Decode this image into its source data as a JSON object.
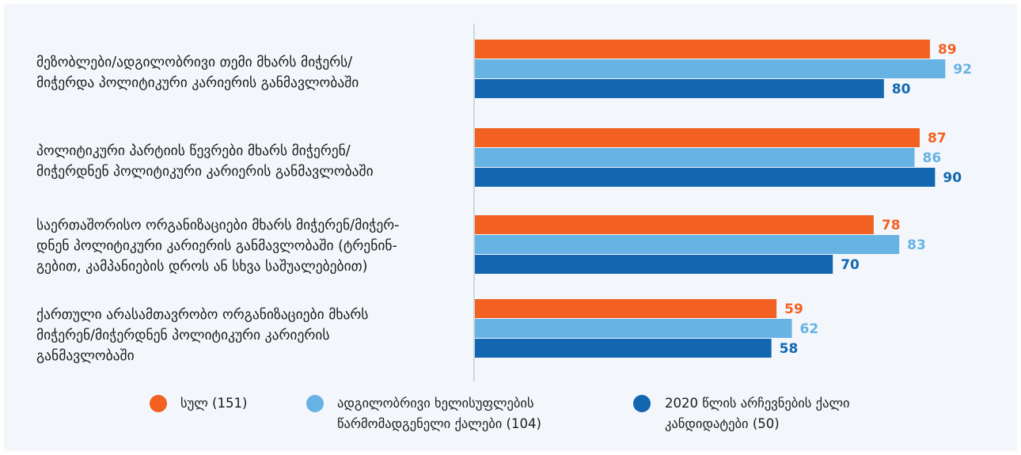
{
  "colors": {
    "total": "#f26122",
    "local_gov": "#67b3e3",
    "candidates": "#1367b1",
    "axis": "#c9d9d9",
    "panel_bg": "#f3f7fb"
  },
  "legend": [
    {
      "label": "სულ (151)",
      "color_key": "total"
    },
    {
      "label": "ადგილობრივი ხელისუფლების\nწარმომადგენელი ქალები (104)",
      "color_key": "local_gov"
    },
    {
      "label": "2020 წლის არჩევნების ქალი\nკანდიდატები (50)",
      "color_key": "candidates"
    }
  ],
  "chart_data": {
    "type": "bar",
    "orientation": "horizontal",
    "categories": [
      "მეზობლები/ადგილობრივი თემი მხარს მიჭერს/\nმიჭერდა პოლიტიკური კარიერის განმავლობაში",
      "პოლიტიკური პარტიის წევრები მხარს მიჭერენ/\nმიჭერდნენ პოლიტიკური კარიერის განმავლობაში",
      "საერთაშორისო ორგანიზაციები მხარს მიჭერენ/მიჭერ-\nდნენ პოლიტიკური კარიერის განმავლობაში (ტრენინ-\nგებით, კამპანიების დროს ან სხვა საშუალებებით)",
      "ქართული არასამთავრობო ორგანიზაციები მხარს\nმიჭერენ/მიჭერდნენ პოლიტიკური კარიერის\nგანმავლობაში"
    ],
    "series": [
      {
        "name": "სულ (151)",
        "values": [
          89,
          87,
          78,
          59
        ],
        "color": "#f26122"
      },
      {
        "name": "ადგილობრივი ხელისუფლების წარმომადგენელი ქალები (104)",
        "values": [
          92,
          86,
          83,
          62
        ],
        "color": "#67b3e3"
      },
      {
        "name": "2020 წლის არჩევნების ქალი კანდიდატები (50)",
        "values": [
          80,
          90,
          70,
          58
        ],
        "color": "#1367b1"
      }
    ],
    "xlim": [
      0,
      100
    ],
    "grid": false,
    "legend_position": "bottom",
    "data_labels": true
  }
}
